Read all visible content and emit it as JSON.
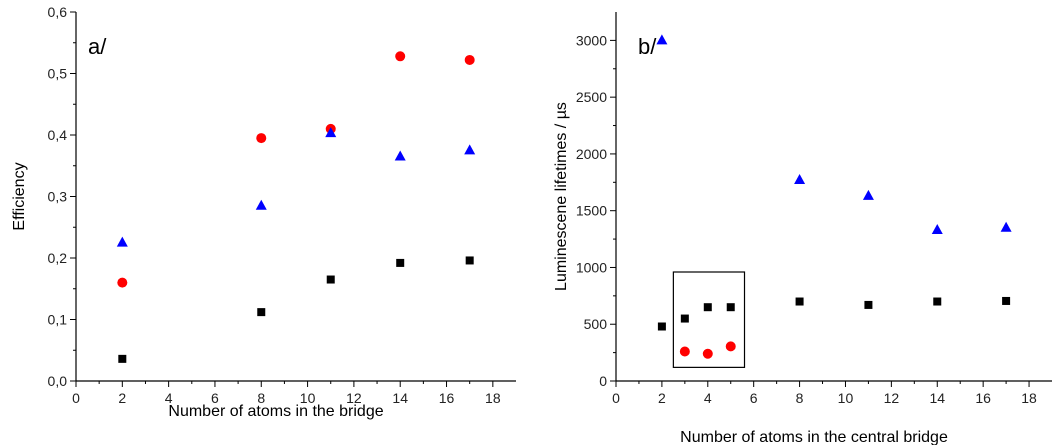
{
  "chart_data": [
    {
      "type": "scatter",
      "panel_label": "a/",
      "xlabel": "Number of atoms in the bridge",
      "ylabel": "Efficiency",
      "xlim": [
        0,
        19
      ],
      "ylim": [
        0,
        0.6
      ],
      "x_ticks": [
        0,
        2,
        4,
        6,
        8,
        10,
        12,
        14,
        16,
        18
      ],
      "y_ticks": [
        0.0,
        0.1,
        0.2,
        0.3,
        0.4,
        0.5,
        0.6
      ],
      "y_tick_labels": [
        "0,0",
        "0,1",
        "0,2",
        "0,3",
        "0,4",
        "0,5",
        "0,6"
      ],
      "grid": false,
      "series": [
        {
          "marker": "square",
          "color": "#000000",
          "points": [
            [
              2,
              0.036
            ],
            [
              8,
              0.112
            ],
            [
              11,
              0.165
            ],
            [
              14,
              0.192
            ],
            [
              17,
              0.196
            ]
          ]
        },
        {
          "marker": "circle",
          "color": "#ff0000",
          "points": [
            [
              2,
              0.16
            ],
            [
              8,
              0.395
            ],
            [
              11,
              0.41
            ],
            [
              14,
              0.528
            ],
            [
              17,
              0.522
            ]
          ]
        },
        {
          "marker": "triangle",
          "color": "#0000ff",
          "points": [
            [
              2,
              0.225
            ],
            [
              8,
              0.285
            ],
            [
              11,
              0.403
            ],
            [
              14,
              0.365
            ],
            [
              17,
              0.375
            ]
          ]
        }
      ]
    },
    {
      "type": "scatter",
      "panel_label": "b/",
      "xlabel": "Number of atoms in the central bridge",
      "ylabel": "Luminescene lifetimes / µs",
      "xlim": [
        0,
        19
      ],
      "ylim": [
        0,
        3250
      ],
      "x_ticks": [
        0,
        2,
        4,
        6,
        8,
        10,
        12,
        14,
        16,
        18
      ],
      "y_ticks": [
        0,
        500,
        1000,
        1500,
        2000,
        2500,
        3000
      ],
      "y_tick_labels": [
        "0",
        "500",
        "1000",
        "1500",
        "2000",
        "2500",
        "3000"
      ],
      "grid": false,
      "series": [
        {
          "marker": "square",
          "color": "#000000",
          "points": [
            [
              2,
              480
            ],
            [
              3,
              550
            ],
            [
              4,
              650
            ],
            [
              5,
              650
            ],
            [
              8,
              700
            ],
            [
              11,
              670
            ],
            [
              14,
              700
            ],
            [
              17,
              705
            ]
          ]
        },
        {
          "marker": "circle",
          "color": "#ff0000",
          "points": [
            [
              3,
              260
            ],
            [
              4,
              240
            ],
            [
              5,
              305
            ]
          ]
        },
        {
          "marker": "triangle",
          "color": "#0000ff",
          "points": [
            [
              2,
              3000
            ],
            [
              8,
              1770
            ],
            [
              11,
              1630
            ],
            [
              14,
              1330
            ],
            [
              17,
              1350
            ]
          ]
        }
      ],
      "inset_box": {
        "x_range": [
          2.5,
          5.6
        ],
        "y_range": [
          120,
          960
        ]
      }
    }
  ]
}
